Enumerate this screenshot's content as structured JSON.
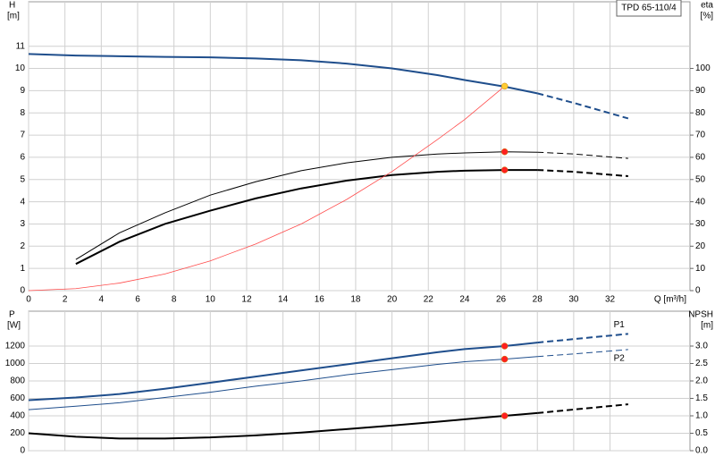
{
  "chart_data": [
    {
      "type": "line",
      "title": "TPD 65-110/4",
      "y_label": "H",
      "y_unit": "[m]",
      "y2_label": "eta",
      "y2_unit": "[%]",
      "x_label": "Q [m³/h]",
      "x": [
        0,
        2.6,
        5,
        7.5,
        10,
        12.5,
        15,
        17.5,
        20,
        22.5,
        24,
        26.2,
        28,
        30,
        33
      ],
      "xlim": [
        0,
        36.4
      ],
      "xticks": [
        0,
        2,
        4,
        6,
        8,
        10,
        12,
        14,
        16,
        18,
        20,
        22,
        24,
        26,
        28,
        30,
        32
      ],
      "ylim": [
        0,
        13
      ],
      "yticks": [
        0,
        1,
        2,
        3,
        4,
        5,
        6,
        7,
        8,
        9,
        10,
        11
      ],
      "y2lim": [
        0,
        130
      ],
      "y2ticks": [
        0,
        10,
        20,
        30,
        40,
        50,
        60,
        70,
        80,
        90,
        100
      ],
      "grid": true,
      "series": [
        {
          "color": "#1f4e8c",
          "width": 2,
          "dashed": false,
          "values": [
            10.65,
            10.58,
            10.55,
            10.52,
            10.5,
            10.45,
            10.37,
            10.22,
            10.0,
            9.7,
            9.48,
            9.18,
            8.88,
            null,
            null
          ]
        },
        {
          "color": "#1f4e8c",
          "width": 2,
          "dashed": true,
          "values": [
            null,
            null,
            null,
            null,
            null,
            null,
            null,
            null,
            null,
            null,
            null,
            null,
            8.88,
            8.45,
            7.75
          ]
        },
        {
          "color": "#000000",
          "width": 1,
          "dashed": false,
          "axis": "y2",
          "values": [
            null,
            14,
            26,
            35,
            43,
            49,
            54,
            57.5,
            60,
            61.5,
            62,
            62.5,
            62.3,
            null,
            null
          ]
        },
        {
          "color": "#000000",
          "width": 1,
          "dashed": true,
          "axis": "y2",
          "values": [
            null,
            null,
            null,
            null,
            null,
            null,
            null,
            null,
            null,
            null,
            null,
            null,
            62.3,
            61.5,
            59.5
          ]
        },
        {
          "color": "#000000",
          "width": 2,
          "dashed": false,
          "axis": "y2",
          "values": [
            null,
            12,
            22,
            30,
            36,
            41.5,
            46,
            49.5,
            52,
            53.5,
            54,
            54.3,
            54.3,
            null,
            null
          ]
        },
        {
          "color": "#000000",
          "width": 2,
          "dashed": true,
          "axis": "y2",
          "values": [
            null,
            null,
            null,
            null,
            null,
            null,
            null,
            null,
            null,
            null,
            null,
            null,
            54.3,
            53.5,
            51.5
          ]
        },
        {
          "color": "#ff4a4a",
          "width": 0.8,
          "dashed": false,
          "values": [
            0,
            0.09,
            0.34,
            0.75,
            1.34,
            2.1,
            3.0,
            4.1,
            5.36,
            6.8,
            7.7,
            9.2,
            null,
            null,
            null
          ]
        }
      ],
      "operating_points": [
        {
          "x": 26.2,
          "y": 9.2,
          "color": "#ffcc33"
        },
        {
          "x": 26.2,
          "y": 62.5,
          "axis": "y2",
          "color": "#ff2020"
        },
        {
          "x": 26.2,
          "y": 54.3,
          "axis": "y2",
          "color": "#ff2020"
        }
      ]
    },
    {
      "type": "line",
      "y_label": "P",
      "y_unit": "[W]",
      "y2_label": "NPSH",
      "y2_unit": "[m]",
      "x": [
        0,
        2.6,
        5,
        7.5,
        10,
        12.5,
        15,
        17.5,
        20,
        22.5,
        24,
        26.2,
        28,
        30,
        33
      ],
      "xlim": [
        0,
        36.4
      ],
      "xticks": [
        0,
        2,
        4,
        6,
        8,
        10,
        12,
        14,
        16,
        18,
        20,
        22,
        24,
        26,
        28,
        30,
        32
      ],
      "xtick_labels": false,
      "ylim": [
        0,
        1600
      ],
      "yticks": [
        0,
        200,
        400,
        600,
        800,
        1000,
        1200
      ],
      "y2lim": [
        0,
        4
      ],
      "y2ticks": [
        {
          "value": 0,
          "label": "0.0"
        },
        0.5,
        {
          "value": 1,
          "label": "1.0"
        },
        1.5,
        {
          "value": 2,
          "label": "2.0"
        },
        2.5,
        {
          "value": 3,
          "label": "3.0"
        }
      ],
      "grid": true,
      "series": [
        {
          "color": "#1f4e8c",
          "width": 2,
          "dashed": false,
          "values": [
            580,
            610,
            650,
            710,
            780,
            850,
            920,
            990,
            1060,
            1130,
            1165,
            1200,
            1240,
            null,
            null
          ]
        },
        {
          "name": "P1",
          "color": "#1f4e8c",
          "width": 2,
          "dashed": true,
          "values": [
            null,
            null,
            null,
            null,
            null,
            null,
            null,
            null,
            null,
            null,
            null,
            null,
            1240,
            1280,
            1340
          ]
        },
        {
          "color": "#1f4e8c",
          "width": 1,
          "dashed": false,
          "values": [
            470,
            510,
            550,
            610,
            670,
            740,
            800,
            870,
            930,
            990,
            1020,
            1050,
            1080,
            null,
            null
          ]
        },
        {
          "name": "P2",
          "color": "#1f4e8c",
          "width": 1,
          "dashed": true,
          "values": [
            null,
            null,
            null,
            null,
            null,
            null,
            null,
            null,
            null,
            null,
            null,
            null,
            1080,
            1110,
            1160
          ]
        },
        {
          "color": "#000000",
          "width": 2,
          "dashed": false,
          "axis": "y2",
          "values": [
            0.5,
            0.4,
            0.35,
            0.35,
            0.38,
            0.44,
            0.52,
            0.62,
            0.72,
            0.83,
            0.9,
            1.0,
            1.08,
            null,
            null
          ]
        },
        {
          "color": "#000000",
          "width": 2,
          "dashed": true,
          "axis": "y2",
          "values": [
            null,
            null,
            null,
            null,
            null,
            null,
            null,
            null,
            null,
            null,
            null,
            null,
            1.08,
            1.18,
            1.33
          ]
        }
      ],
      "operating_points": [
        {
          "x": 26.2,
          "y": 1200,
          "color": "#ff2020"
        },
        {
          "x": 26.2,
          "y": 1050,
          "color": "#ff2020"
        },
        {
          "x": 26.2,
          "y": 1.0,
          "axis": "y2",
          "color": "#ff2020"
        }
      ]
    }
  ]
}
